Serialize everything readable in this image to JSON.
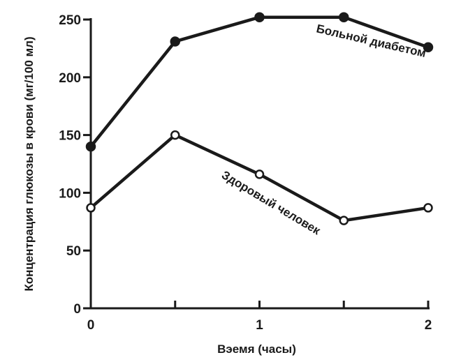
{
  "chart_data": {
    "type": "line",
    "title": "",
    "xlabel": "Вэемя (часы)",
    "ylabel": "Концентрация глюкозы в крови (мг/100 мл)",
    "xlim": [
      0,
      2
    ],
    "ylim": [
      0,
      250
    ],
    "x_ticks": [
      0,
      0.5,
      1,
      1.5,
      2
    ],
    "x_tick_labels": [
      "0",
      "",
      "1",
      "",
      "2"
    ],
    "y_ticks": [
      0,
      50,
      100,
      150,
      200,
      250
    ],
    "y_tick_labels": [
      "0",
      "50",
      "100",
      "150",
      "200",
      "250"
    ],
    "grid": false,
    "legend": "none",
    "x": [
      0,
      0.5,
      1,
      1.5,
      2
    ],
    "series": [
      {
        "name": "Больной диабетом",
        "values": [
          140,
          231,
          252,
          252,
          226
        ],
        "marker": "filled-circle",
        "color": "#1a1a1a"
      },
      {
        "name": "Здоровый человек",
        "values": [
          87,
          150,
          116,
          76,
          87
        ],
        "marker": "open-circle",
        "color": "#1a1a1a"
      }
    ]
  }
}
